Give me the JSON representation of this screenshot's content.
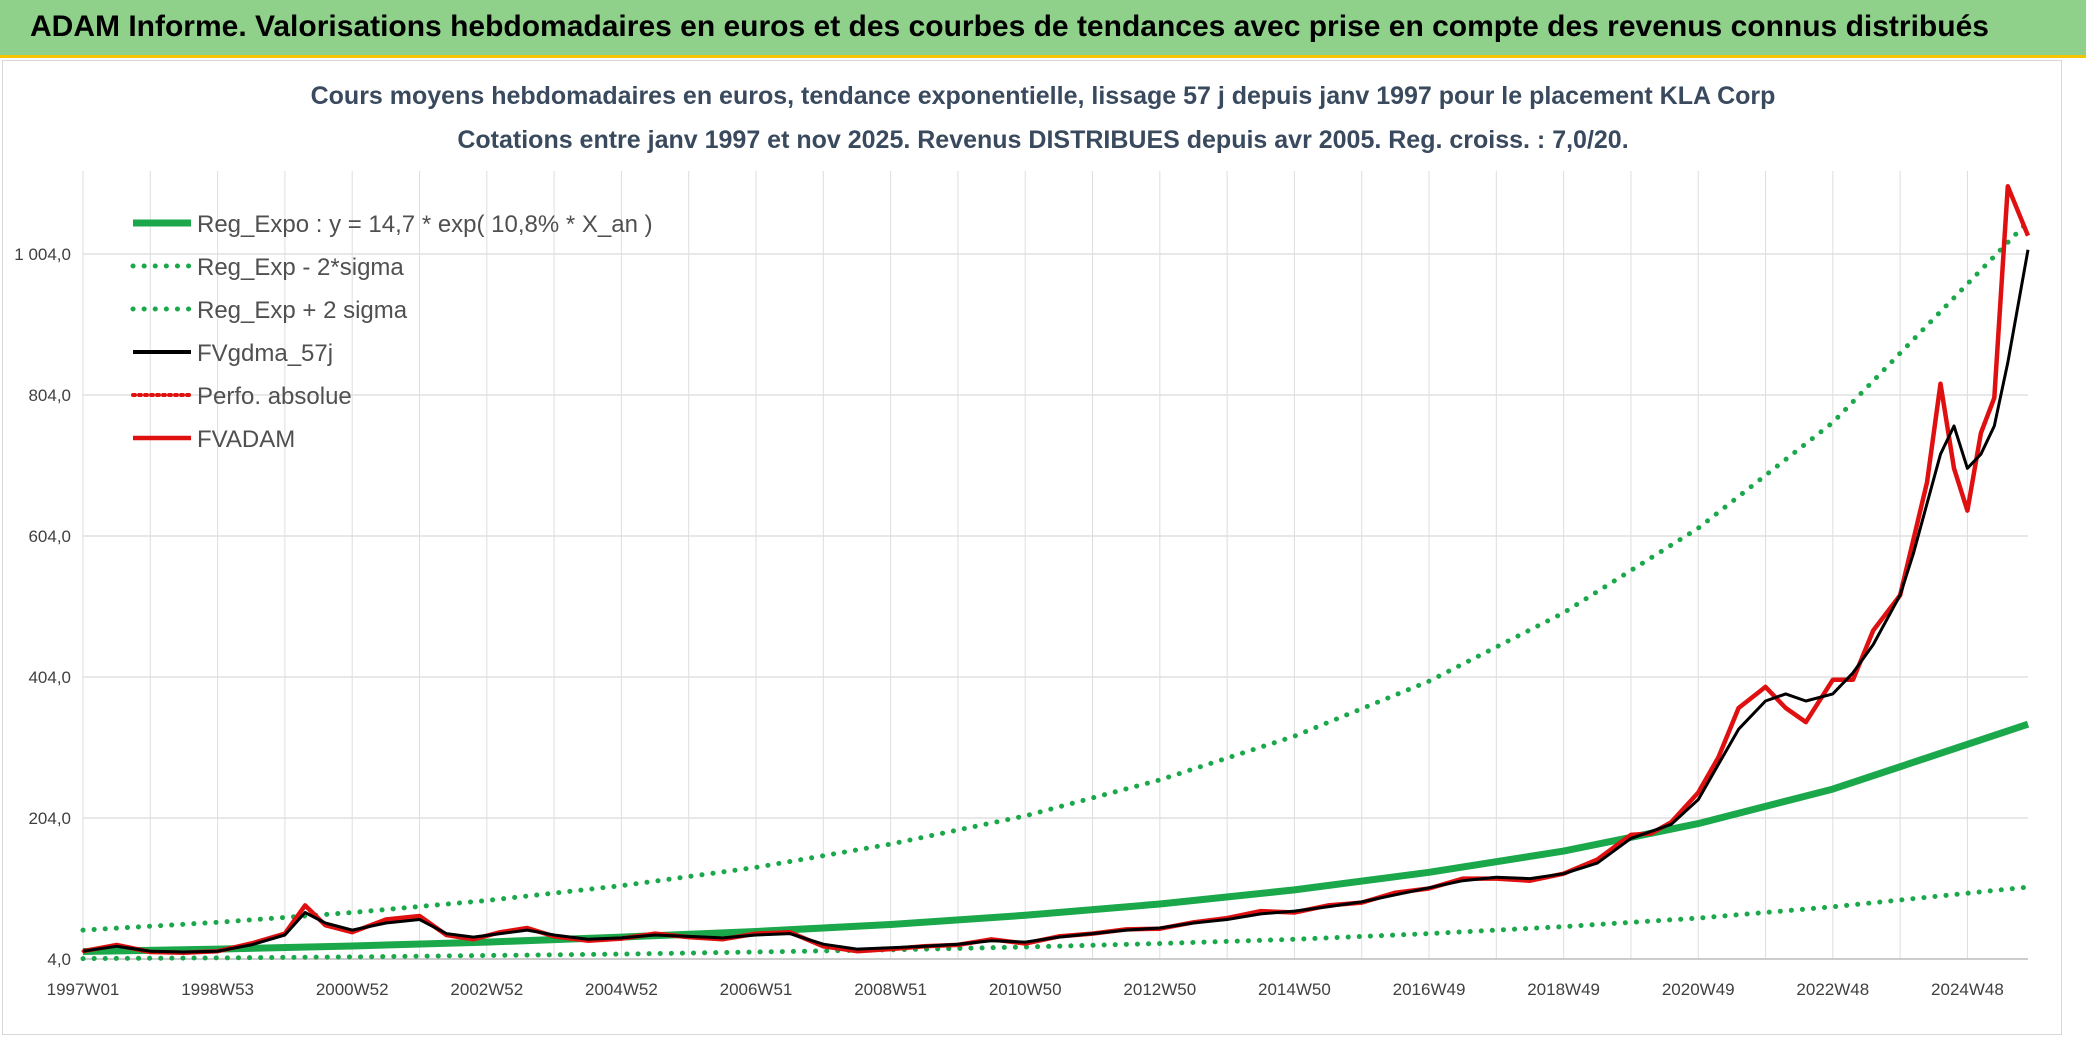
{
  "header": {
    "title": "ADAM Informe. Valorisations hebdomadaires en euros et des courbes de tendances avec prise en compte des revenus connus distribués"
  },
  "chart_data": {
    "type": "line",
    "title": "Cours moyens hebdomadaires en euros, tendance exponentielle, lissage 57 j depuis janv 1997 pour le placement KLA Corp",
    "subtitle": "Cotations entre janv 1997 et nov 2025. Revenus DISTRIBUES depuis avr 2005. Reg. croiss. : 7,0/20.",
    "xlabel": "",
    "ylabel": "",
    "x_range": [
      1997.0,
      2025.9
    ],
    "ylim": [
      4,
      1100
    ],
    "y_ticks": [
      "4,0",
      "204,0",
      "404,0",
      "604,0",
      "804,0",
      "1 004,0"
    ],
    "y_tick_values": [
      4,
      204,
      404,
      604,
      804,
      1004
    ],
    "x_ticks": [
      "1997W01",
      "1998W53",
      "2000W52",
      "2002W52",
      "2004W52",
      "2006W51",
      "2008W51",
      "2010W50",
      "2012W50",
      "2014W50",
      "2016W49",
      "2018W49",
      "2020W49",
      "2022W48",
      "2024W48"
    ],
    "x_tick_values": [
      1997.0,
      1999.0,
      2001.0,
      2003.0,
      2005.0,
      2007.0,
      2009.0,
      2011.0,
      2013.0,
      2015.0,
      2017.0,
      2019.0,
      2021.0,
      2023.0,
      2025.0
    ],
    "grid": true,
    "legend_position": "top-left",
    "series": [
      {
        "name": "Reg_Expo : y = 14,7 * exp( 10,8% *  X_an )",
        "color": "#1aa84b",
        "style": "solid",
        "x": [
          1997.0,
          1999.0,
          2001.0,
          2003.0,
          2005.0,
          2007.0,
          2009.0,
          2011.0,
          2013.0,
          2015.0,
          2017.0,
          2019.0,
          2021.0,
          2023.0,
          2025.9
        ],
        "y": [
          14.7,
          18,
          22.5,
          28,
          35,
          43,
          53,
          66,
          82,
          102,
          127,
          157,
          196,
          245,
          337
        ]
      },
      {
        "name": "Reg_Exp - 2*sigma",
        "color": "#1aa84b",
        "style": "dotted",
        "x": [
          1997.0,
          1999.0,
          2001.0,
          2003.0,
          2005.0,
          2007.0,
          2009.0,
          2011.0,
          2013.0,
          2015.0,
          2017.0,
          2019.0,
          2021.0,
          2023.0,
          2025.9
        ],
        "y": [
          4.5,
          5.5,
          7,
          9,
          11,
          14,
          17,
          21,
          26,
          32,
          40,
          50,
          62,
          78,
          106
        ]
      },
      {
        "name": "Reg_Exp + 2 sigma",
        "color": "#1aa84b",
        "style": "dotted",
        "x": [
          1997.0,
          1999.0,
          2001.0,
          2003.0,
          2005.0,
          2007.0,
          2009.0,
          2011.0,
          2013.0,
          2015.0,
          2017.0,
          2019.0,
          2021.0,
          2023.0,
          2025.9
        ],
        "y": [
          45,
          56,
          70,
          87,
          108,
          134,
          167,
          207,
          258,
          320,
          398,
          495,
          615,
          765,
          1050
        ]
      },
      {
        "name": "FVgdma_57j",
        "color": "#000000",
        "style": "solid",
        "x": [
          1997.0,
          1997.5,
          1998.0,
          1998.5,
          1999.0,
          1999.5,
          2000.0,
          2000.3,
          2000.6,
          2001.0,
          2001.5,
          2002.0,
          2002.4,
          2002.8,
          2003.2,
          2003.6,
          2004.0,
          2004.5,
          2005.0,
          2005.5,
          2006.0,
          2006.5,
          2007.0,
          2007.5,
          2008.0,
          2008.5,
          2009.0,
          2009.5,
          2010.0,
          2010.5,
          2011.0,
          2011.5,
          2012.0,
          2012.5,
          2013.0,
          2013.5,
          2014.0,
          2014.5,
          2015.0,
          2015.5,
          2016.0,
          2016.5,
          2017.0,
          2017.5,
          2018.0,
          2018.5,
          2019.0,
          2019.5,
          2020.0,
          2020.3,
          2020.6,
          2021.0,
          2021.3,
          2021.6,
          2022.0,
          2022.3,
          2022.6,
          2023.0,
          2023.3,
          2023.6,
          2024.0,
          2024.2,
          2024.4,
          2024.6,
          2024.8,
          2025.0,
          2025.2,
          2025.4,
          2025.6,
          2025.9
        ],
        "y": [
          15,
          22,
          15,
          14,
          15,
          24,
          38,
          70,
          55,
          45,
          55,
          60,
          40,
          35,
          40,
          45,
          38,
          32,
          34,
          38,
          36,
          34,
          38,
          40,
          25,
          18,
          20,
          22,
          25,
          30,
          28,
          35,
          40,
          45,
          48,
          55,
          60,
          68,
          72,
          78,
          85,
          95,
          105,
          115,
          120,
          118,
          125,
          140,
          175,
          185,
          195,
          230,
          280,
          330,
          370,
          380,
          370,
          380,
          410,
          450,
          520,
          580,
          650,
          720,
          760,
          700,
          720,
          760,
          850,
          1010
        ]
      },
      {
        "name": "Perfo. absolue",
        "color": "#e01010",
        "style": "dotted",
        "x": [
          1997.0,
          1997.5,
          1998.0,
          1998.5,
          1999.0,
          1999.5,
          2000.0,
          2000.3,
          2000.6,
          2001.0,
          2001.5,
          2002.0,
          2002.4,
          2002.8,
          2003.2,
          2003.6,
          2004.0,
          2004.5,
          2005.0,
          2005.5,
          2006.0,
          2006.5,
          2007.0,
          2007.5,
          2008.0,
          2008.5,
          2009.0,
          2009.5,
          2010.0,
          2010.5,
          2011.0,
          2011.5,
          2012.0,
          2012.5,
          2013.0,
          2013.5,
          2014.0,
          2014.5,
          2015.0,
          2015.5,
          2016.0,
          2016.5,
          2017.0,
          2017.5,
          2018.0,
          2018.5,
          2019.0,
          2019.5,
          2020.0,
          2020.3,
          2020.6,
          2021.0,
          2021.3,
          2021.6,
          2022.0,
          2022.3,
          2022.6,
          2023.0,
          2023.3,
          2023.6,
          2024.0,
          2024.2,
          2024.4,
          2024.6,
          2024.8,
          2025.0,
          2025.2,
          2025.4,
          2025.6,
          2025.9
        ],
        "y": [
          15,
          24,
          14,
          13,
          15,
          26,
          40,
          80,
          52,
          42,
          60,
          65,
          38,
          32,
          42,
          48,
          36,
          30,
          33,
          40,
          35,
          32,
          40,
          42,
          22,
          15,
          18,
          22,
          24,
          32,
          26,
          36,
          40,
          46,
          47,
          56,
          62,
          72,
          70,
          80,
          84,
          98,
          104,
          118,
          118,
          115,
          125,
          145,
          180,
          182,
          198,
          240,
          290,
          360,
          390,
          360,
          340,
          400,
          400,
          470,
          520,
          600,
          680,
          820,
          700,
          640,
          750,
          800,
          1100,
          1030
        ]
      },
      {
        "name": "FVADAM",
        "color": "#e01010",
        "style": "solid",
        "x": [
          1997.0,
          1997.5,
          1998.0,
          1998.5,
          1999.0,
          1999.5,
          2000.0,
          2000.3,
          2000.6,
          2001.0,
          2001.5,
          2002.0,
          2002.4,
          2002.8,
          2003.2,
          2003.6,
          2004.0,
          2004.5,
          2005.0,
          2005.5,
          2006.0,
          2006.5,
          2007.0,
          2007.5,
          2008.0,
          2008.5,
          2009.0,
          2009.5,
          2010.0,
          2010.5,
          2011.0,
          2011.5,
          2012.0,
          2012.5,
          2013.0,
          2013.5,
          2014.0,
          2014.5,
          2015.0,
          2015.5,
          2016.0,
          2016.5,
          2017.0,
          2017.5,
          2018.0,
          2018.5,
          2019.0,
          2019.5,
          2020.0,
          2020.3,
          2020.6,
          2021.0,
          2021.3,
          2021.6,
          2022.0,
          2022.3,
          2022.6,
          2023.0,
          2023.3,
          2023.6,
          2024.0,
          2024.2,
          2024.4,
          2024.6,
          2024.8,
          2025.0,
          2025.2,
          2025.4,
          2025.6,
          2025.9
        ],
        "y": [
          15,
          24,
          14,
          13,
          15,
          26,
          40,
          80,
          52,
          42,
          60,
          65,
          38,
          32,
          42,
          48,
          36,
          30,
          33,
          40,
          35,
          32,
          40,
          42,
          22,
          15,
          18,
          22,
          24,
          32,
          26,
          36,
          40,
          46,
          47,
          56,
          62,
          72,
          70,
          80,
          84,
          98,
          104,
          118,
          118,
          115,
          125,
          145,
          180,
          182,
          198,
          240,
          290,
          360,
          390,
          360,
          340,
          400,
          400,
          470,
          520,
          600,
          680,
          820,
          700,
          640,
          750,
          800,
          1100,
          1030
        ]
      }
    ]
  }
}
